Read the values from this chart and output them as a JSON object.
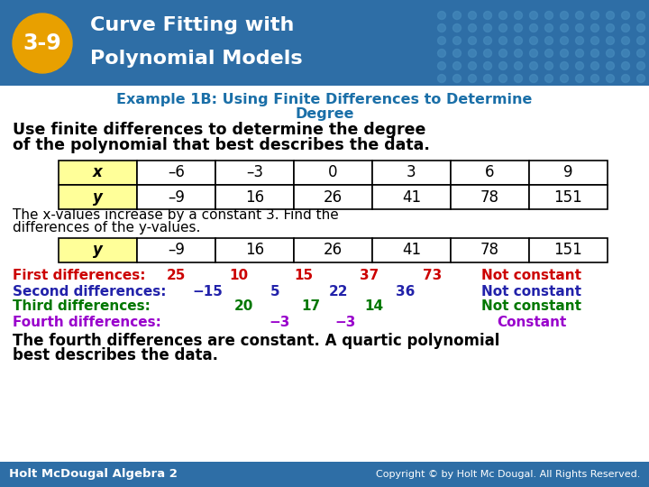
{
  "header_bg": "#2e6ea6",
  "header_badge_bg": "#e8a000",
  "header_badge_text": "3-9",
  "header_title_line1": "Curve Fitting with",
  "header_title_line2": "Polynomial Models",
  "example_title_line1": "Example 1B: Using Finite Differences to Determine",
  "example_title_line2": "Degree",
  "table1_headers": [
    "x",
    "–6",
    "–3",
    "0",
    "3",
    "6",
    "9"
  ],
  "table1_row": [
    "y",
    "–9",
    "16",
    "26",
    "41",
    "78",
    "151"
  ],
  "table2_row": [
    "y",
    "–9",
    "16",
    "26",
    "41",
    "78",
    "151"
  ],
  "first_diff_label": "First differences:",
  "first_diff_nums": [
    "25",
    "10",
    "15",
    "37",
    "73"
  ],
  "first_diff_result": "Not constant",
  "first_diff_color": "#cc0000",
  "second_diff_label": "Second differences:",
  "second_diff_nums": [
    "−15",
    "5",
    "22",
    "36"
  ],
  "second_diff_result": "Not constant",
  "second_diff_color": "#2222aa",
  "third_diff_label": "Third differences:",
  "third_diff_nums": [
    "20",
    "17",
    "14"
  ],
  "third_diff_result": "Not constant",
  "third_diff_color": "#007700",
  "fourth_diff_label": "Fourth differences:",
  "fourth_diff_nums": [
    "−3",
    "−3"
  ],
  "fourth_diff_result": "Constant",
  "fourth_diff_color": "#9900cc",
  "footer_left": "Holt Mc​Dougal Algebra 2",
  "footer_right": "Copyright © by Holt Mc Dougal. All Rights Reserved.",
  "footer_bg": "#2e6ea6",
  "bg_color": "#ffffff",
  "example_title_color": "#1a6fa8",
  "cell_header_bg": "#ffff99"
}
